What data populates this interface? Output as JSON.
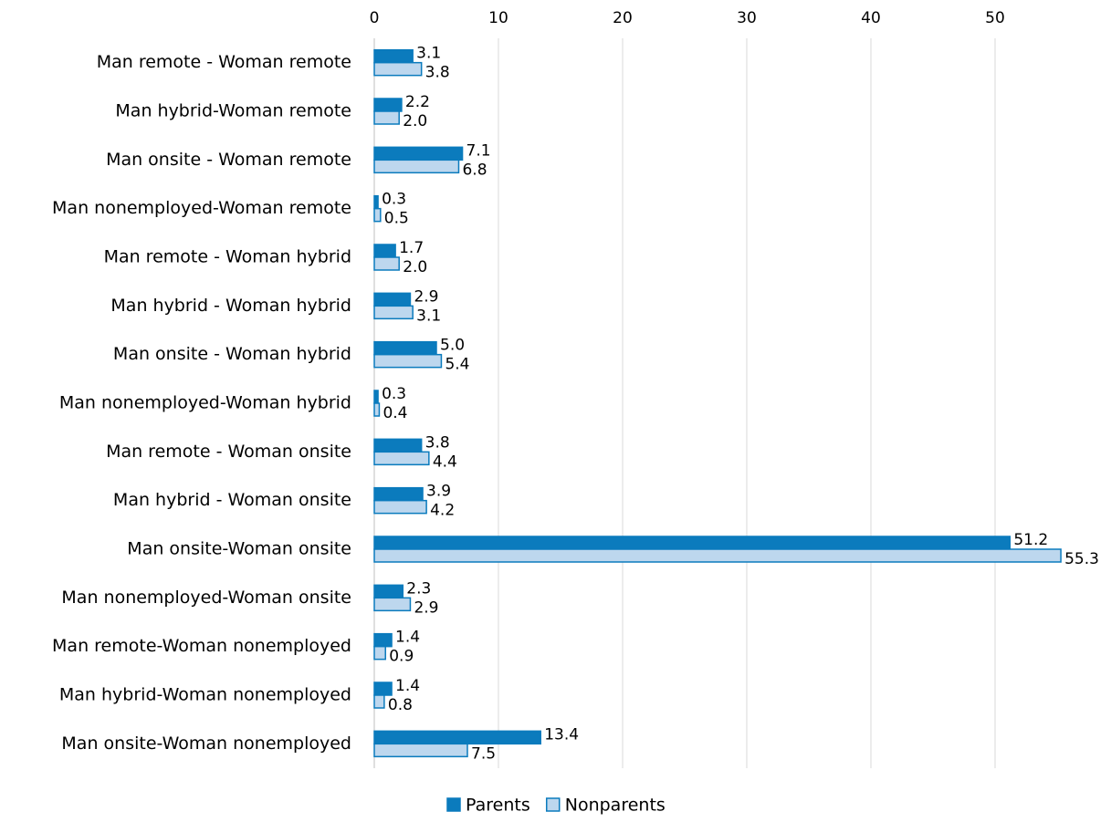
{
  "chart_data": {
    "type": "bar",
    "orientation": "horizontal",
    "categories": [
      "Man remote - Woman remote",
      "Man hybrid-Woman remote",
      "Man onsite - Woman remote",
      "Man nonemployed-Woman remote",
      "Man remote - Woman hybrid",
      "Man hybrid - Woman hybrid",
      "Man onsite - Woman hybrid",
      "Man nonemployed-Woman hybrid",
      "Man remote - Woman onsite",
      "Man hybrid - Woman onsite",
      "Man onsite-Woman onsite",
      "Man nonemployed-Woman onsite",
      "Man remote-Woman nonemployed",
      "Man hybrid-Woman nonemployed",
      "Man onsite-Woman nonemployed"
    ],
    "series": [
      {
        "name": "Parents",
        "color": "#0b7bbd",
        "values": [
          3.1,
          2.2,
          7.1,
          0.3,
          1.7,
          2.9,
          5.0,
          0.3,
          3.8,
          3.9,
          51.2,
          2.3,
          1.4,
          1.4,
          13.4
        ],
        "value_labels": [
          "3.1",
          "2.2",
          "7.1",
          "0.3",
          "1.7",
          "2.9",
          "5.0",
          "0.3",
          "3.8",
          "3.9",
          "51.2",
          "2.3",
          "1.4",
          "1.4",
          "13.4"
        ]
      },
      {
        "name": "Nonparents",
        "color": "#bdd7ee",
        "values": [
          3.8,
          2.0,
          6.8,
          0.5,
          2.0,
          3.1,
          5.4,
          0.4,
          4.4,
          4.2,
          55.3,
          2.9,
          0.9,
          0.8,
          7.5
        ],
        "value_labels": [
          "3.8",
          "2.0",
          "6.8",
          "0.5",
          "2.0",
          "3.1",
          "5.4",
          "0.4",
          "4.4",
          "4.2",
          "55.3",
          "2.9",
          "0.9",
          "0.8",
          "7.5"
        ]
      }
    ],
    "xlim": [
      0,
      56
    ],
    "xticks": [
      0,
      10,
      20,
      30,
      40,
      50
    ],
    "grid": true,
    "legend": "bottom"
  }
}
